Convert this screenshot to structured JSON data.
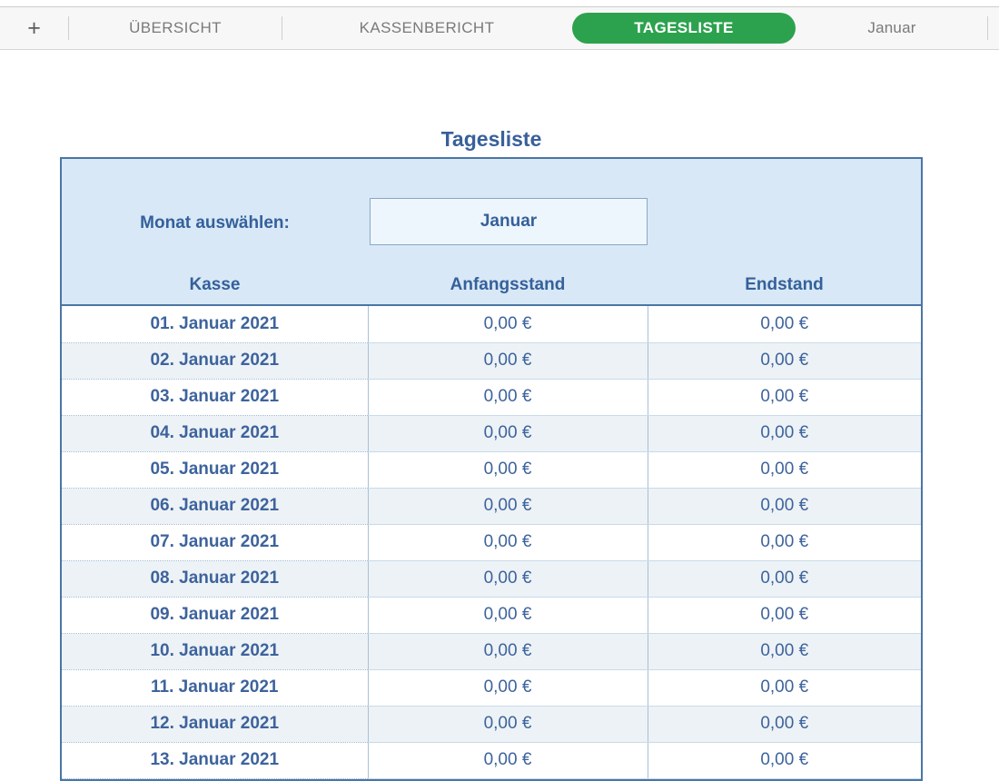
{
  "tab_bar": {
    "add_button": "+",
    "tabs": [
      {
        "label": "ÜBERSICHT",
        "active": false
      },
      {
        "label": "KASSENBERICHT",
        "active": false
      },
      {
        "label": "TAGESLISTE",
        "active": true
      },
      {
        "label": "Januar",
        "active": false
      }
    ]
  },
  "sheet": {
    "title": "Tagesliste",
    "month_label": "Monat auswählen:",
    "month_value": "Januar",
    "columns": [
      "Kasse",
      "Anfangsstand",
      "Endstand"
    ],
    "rows": [
      {
        "date": "01. Januar 2021",
        "start": "0,00 €",
        "end": "0,00 €"
      },
      {
        "date": "02. Januar 2021",
        "start": "0,00 €",
        "end": "0,00 €"
      },
      {
        "date": "03. Januar 2021",
        "start": "0,00 €",
        "end": "0,00 €"
      },
      {
        "date": "04. Januar 2021",
        "start": "0,00 €",
        "end": "0,00 €"
      },
      {
        "date": "05. Januar 2021",
        "start": "0,00 €",
        "end": "0,00 €"
      },
      {
        "date": "06. Januar 2021",
        "start": "0,00 €",
        "end": "0,00 €"
      },
      {
        "date": "07. Januar 2021",
        "start": "0,00 €",
        "end": "0,00 €"
      },
      {
        "date": "08. Januar 2021",
        "start": "0,00 €",
        "end": "0,00 €"
      },
      {
        "date": "09. Januar 2021",
        "start": "0,00 €",
        "end": "0,00 €"
      },
      {
        "date": "10. Januar 2021",
        "start": "0,00 €",
        "end": "0,00 €"
      },
      {
        "date": "11. Januar 2021",
        "start": "0,00 €",
        "end": "0,00 €"
      },
      {
        "date": "12. Januar 2021",
        "start": "0,00 €",
        "end": "0,00 €"
      },
      {
        "date": "13. Januar 2021",
        "start": "0,00 €",
        "end": "0,00 €"
      }
    ]
  },
  "colors": {
    "active_tab_green": "#2da24e",
    "heading_blue": "#38609a",
    "table_border_blue": "#4a76a4",
    "header_fill_blue": "#d8e8f6",
    "month_box_fill": "#eef6fd",
    "alt_row_fill": "#edf2f6"
  }
}
